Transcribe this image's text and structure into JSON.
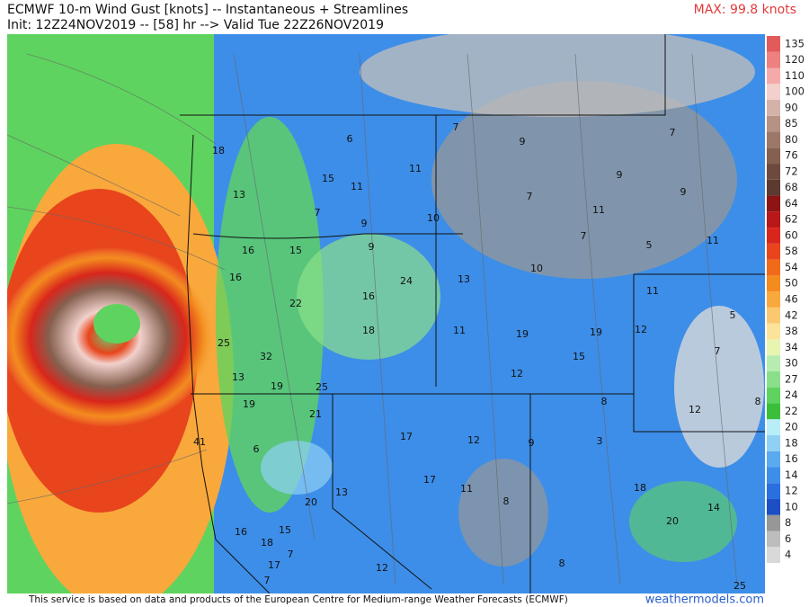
{
  "header": {
    "title": "ECMWF 10-m Wind Gust [knots] -- Instantaneous + Streamlines",
    "init": "Init: 12Z24NOV2019 -- [58] hr --> Valid Tue 22Z26NOV2019",
    "max": "MAX: 99.8 knots"
  },
  "colorbar": {
    "levels": [
      4,
      6,
      8,
      10,
      12,
      14,
      16,
      18,
      20,
      22,
      24,
      27,
      30,
      34,
      38,
      42,
      46,
      50,
      54,
      58,
      60,
      62,
      64,
      68,
      72,
      76,
      80,
      85,
      90,
      100,
      110,
      120,
      135
    ],
    "colors": [
      "#d9d9d9",
      "#bdbdbd",
      "#979797",
      "#1c4fc4",
      "#2a6fe0",
      "#3d8ee8",
      "#5aaaf0",
      "#8fd0f5",
      "#b7eef7",
      "#3bbf3b",
      "#5fd35f",
      "#8ae08a",
      "#b6ecb0",
      "#e8f5b0",
      "#fbe39a",
      "#fbc870",
      "#f9a83c",
      "#f38b1e",
      "#f06a1a",
      "#e8451c",
      "#d9261c",
      "#b81818",
      "#8e1414",
      "#5c3a2f",
      "#6e4a3e",
      "#85604f",
      "#9d7868",
      "#b69283",
      "#d3b3a7",
      "#f2d1cc",
      "#f6a9a9",
      "#ee8080",
      "#e35a5a"
    ]
  },
  "map": {
    "labels": [
      7,
      6,
      9,
      7,
      18,
      11,
      9,
      15,
      11,
      7,
      9,
      13,
      7,
      9,
      10,
      11,
      7,
      5,
      11,
      9,
      16,
      15,
      10,
      16,
      24,
      13,
      11,
      16,
      22,
      5,
      18,
      11,
      19,
      19,
      12,
      25,
      7,
      32,
      15,
      13,
      12,
      19,
      25,
      8,
      8,
      19,
      21,
      12,
      17,
      12,
      9,
      3,
      41,
      6,
      17,
      11,
      13,
      18,
      20,
      8,
      20,
      14,
      16,
      15,
      18,
      7,
      17,
      12,
      8,
      7,
      25
    ]
  },
  "footer": {
    "notice": "This service is based on data and products of the European Centre for Medium-range Weather Forecasts (ECMWF)",
    "site": "weathermodels.com"
  }
}
